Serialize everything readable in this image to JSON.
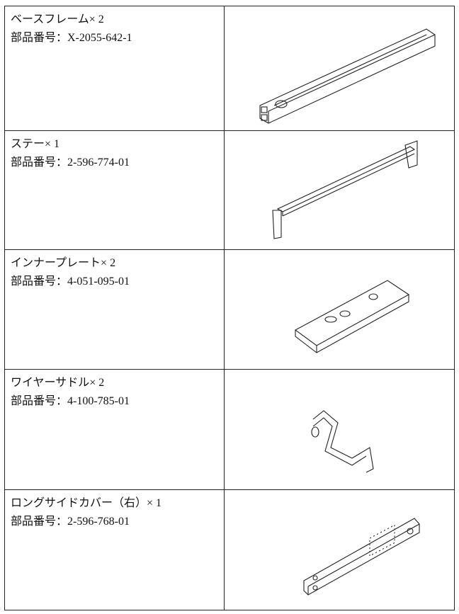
{
  "table": {
    "rows": [
      {
        "name": "ベースフレーム× 2",
        "part": "部品番号：X-2055-642-1"
      },
      {
        "name": "ステー× 1",
        "part": "部品番号：2-596-774-01"
      },
      {
        "name": "インナープレート× 2",
        "part": "部品番号：4-051-095-01"
      },
      {
        "name": "ワイヤーサドル× 2",
        "part": "部品番号：4-100-785-01"
      },
      {
        "name": "ロングサイドカバー（右）× 1",
        "part": "部品番号：2-596-768-01"
      }
    ]
  }
}
